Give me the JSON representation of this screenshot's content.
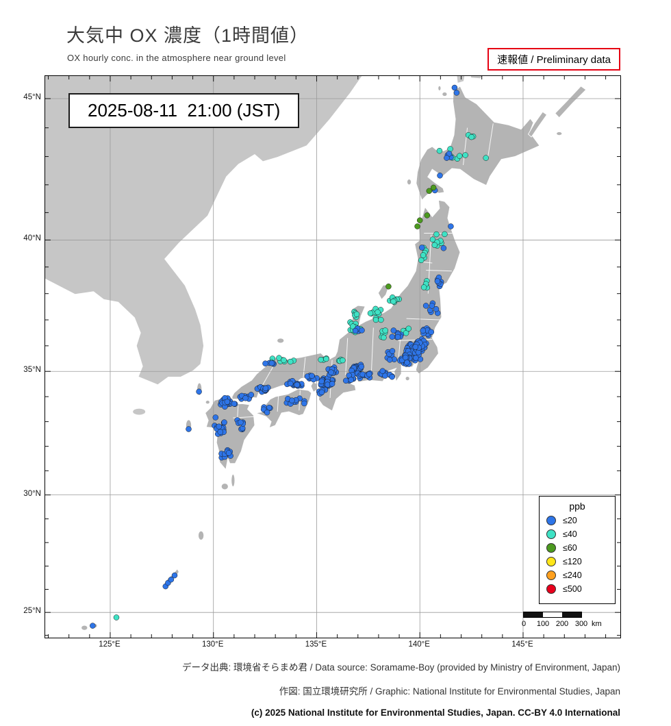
{
  "header": {
    "title": "大気中 OX 濃度（1時間値）",
    "subtitle": "OX hourly conc. in the atmosphere near ground level",
    "preliminary": "速報値 / Preliminary data"
  },
  "map": {
    "timestamp": "2025-08-11  21:00 (JST)",
    "scalebar": {
      "labels": [
        "0",
        "100",
        "200",
        "300",
        "km"
      ]
    }
  },
  "axes": {
    "lat": [
      {
        "label": "45°N",
        "value": 45
      },
      {
        "label": "40°N",
        "value": 40
      },
      {
        "label": "35°N",
        "value": 35
      },
      {
        "label": "30°N",
        "value": 30
      },
      {
        "label": "25°N",
        "value": 25
      }
    ],
    "lon": [
      {
        "label": "125°E",
        "value": 125
      },
      {
        "label": "130°E",
        "value": 130
      },
      {
        "label": "135°E",
        "value": 135
      },
      {
        "label": "140°E",
        "value": 140
      },
      {
        "label": "145°E",
        "value": 145
      }
    ]
  },
  "legend": {
    "title": "ppb",
    "items": [
      {
        "label": "≤20",
        "level": 20,
        "color": "#2e75e8"
      },
      {
        "label": "≤40",
        "level": 40,
        "color": "#3fe2c5"
      },
      {
        "label": "≤60",
        "level": 60,
        "color": "#4c9a1f"
      },
      {
        "label": "≤120",
        "level": 120,
        "color": "#ffe619"
      },
      {
        "label": "≤240",
        "level": 240,
        "color": "#ffa01e"
      },
      {
        "label": "≤500",
        "level": 500,
        "color": "#e8001c"
      }
    ]
  },
  "stations": {
    "clusters": [
      {
        "lon": 139.65,
        "lat": 35.75,
        "sx": 0.45,
        "sy": 0.35,
        "n": 70,
        "level": 20
      },
      {
        "lon": 140.0,
        "lat": 36.0,
        "sx": 0.35,
        "sy": 0.3,
        "n": 35,
        "level": 20
      },
      {
        "lon": 139.3,
        "lat": 35.45,
        "sx": 0.3,
        "sy": 0.2,
        "n": 20,
        "level": 20
      },
      {
        "lon": 138.35,
        "lat": 34.9,
        "sx": 0.45,
        "sy": 0.15,
        "n": 12,
        "level": 20
      },
      {
        "lon": 136.95,
        "lat": 35.1,
        "sx": 0.3,
        "sy": 0.28,
        "n": 30,
        "level": 20
      },
      {
        "lon": 137.3,
        "lat": 34.85,
        "sx": 0.35,
        "sy": 0.15,
        "n": 12,
        "level": 20
      },
      {
        "lon": 135.5,
        "lat": 34.6,
        "sx": 0.35,
        "sy": 0.22,
        "n": 40,
        "level": 20
      },
      {
        "lon": 135.75,
        "lat": 35.0,
        "sx": 0.25,
        "sy": 0.2,
        "n": 14,
        "level": 20
      },
      {
        "lon": 134.7,
        "lat": 34.75,
        "sx": 0.35,
        "sy": 0.12,
        "n": 12,
        "level": 20
      },
      {
        "lon": 133.8,
        "lat": 34.5,
        "sx": 0.5,
        "sy": 0.15,
        "n": 20,
        "level": 20
      },
      {
        "lon": 132.5,
        "lat": 34.28,
        "sx": 0.4,
        "sy": 0.15,
        "n": 16,
        "level": 20
      },
      {
        "lon": 131.5,
        "lat": 34.0,
        "sx": 0.45,
        "sy": 0.12,
        "n": 10,
        "level": 20
      },
      {
        "lon": 130.65,
        "lat": 33.75,
        "sx": 0.4,
        "sy": 0.25,
        "n": 30,
        "level": 20
      },
      {
        "lon": 130.3,
        "lat": 32.8,
        "sx": 0.3,
        "sy": 0.4,
        "n": 18,
        "level": 20
      },
      {
        "lon": 130.6,
        "lat": 31.7,
        "sx": 0.25,
        "sy": 0.35,
        "n": 10,
        "level": 20
      },
      {
        "lon": 131.3,
        "lat": 32.9,
        "sx": 0.25,
        "sy": 0.4,
        "n": 8,
        "level": 20
      },
      {
        "lon": 133.9,
        "lat": 33.8,
        "sx": 0.55,
        "sy": 0.2,
        "n": 12,
        "level": 20
      },
      {
        "lon": 132.6,
        "lat": 33.5,
        "sx": 0.25,
        "sy": 0.2,
        "n": 6,
        "level": 20
      },
      {
        "lon": 135.3,
        "lat": 34.25,
        "sx": 0.2,
        "sy": 0.15,
        "n": 8,
        "level": 20
      },
      {
        "lon": 136.6,
        "lat": 34.75,
        "sx": 0.25,
        "sy": 0.2,
        "n": 10,
        "level": 20
      },
      {
        "lon": 140.9,
        "lat": 38.3,
        "sx": 0.2,
        "sy": 0.35,
        "n": 7,
        "level": 20
      },
      {
        "lon": 140.55,
        "lat": 37.4,
        "sx": 0.35,
        "sy": 0.3,
        "n": 7,
        "level": 20
      },
      {
        "lon": 140.3,
        "lat": 36.55,
        "sx": 0.3,
        "sy": 0.2,
        "n": 10,
        "level": 20
      },
      {
        "lon": 138.9,
        "lat": 36.5,
        "sx": 0.3,
        "sy": 0.25,
        "n": 8,
        "level": 20
      },
      {
        "lon": 138.6,
        "lat": 35.65,
        "sx": 0.25,
        "sy": 0.2,
        "n": 7,
        "level": 20
      },
      {
        "lon": 137.0,
        "lat": 36.6,
        "sx": 0.25,
        "sy": 0.15,
        "n": 6,
        "level": 20
      },
      {
        "lon": 132.8,
        "lat": 35.3,
        "sx": 0.4,
        "sy": 0.1,
        "n": 5,
        "level": 20
      },
      {
        "lon": 136.7,
        "lat": 36.7,
        "sx": 0.45,
        "sy": 0.3,
        "n": 14,
        "level": 40
      },
      {
        "lon": 137.9,
        "lat": 37.2,
        "sx": 0.45,
        "sy": 0.25,
        "n": 12,
        "level": 40
      },
      {
        "lon": 138.8,
        "lat": 37.75,
        "sx": 0.35,
        "sy": 0.25,
        "n": 10,
        "level": 40
      },
      {
        "lon": 136.9,
        "lat": 37.25,
        "sx": 0.2,
        "sy": 0.18,
        "n": 5,
        "level": 40
      },
      {
        "lon": 133.4,
        "lat": 35.45,
        "sx": 0.7,
        "sy": 0.1,
        "n": 9,
        "level": 40
      },
      {
        "lon": 135.4,
        "lat": 35.5,
        "sx": 0.3,
        "sy": 0.12,
        "n": 4,
        "level": 40
      },
      {
        "lon": 140.9,
        "lat": 40.0,
        "sx": 0.35,
        "sy": 0.45,
        "n": 8,
        "level": 40
      },
      {
        "lon": 140.2,
        "lat": 39.5,
        "sx": 0.25,
        "sy": 0.4,
        "n": 6,
        "level": 40
      },
      {
        "lon": 140.3,
        "lat": 38.35,
        "sx": 0.25,
        "sy": 0.3,
        "n": 5,
        "level": 40
      },
      {
        "lon": 138.2,
        "lat": 36.5,
        "sx": 0.3,
        "sy": 0.3,
        "n": 7,
        "level": 40
      },
      {
        "lon": 139.3,
        "lat": 36.6,
        "sx": 0.25,
        "sy": 0.12,
        "n": 5,
        "level": 40
      },
      {
        "lon": 141.7,
        "lat": 43.1,
        "sx": 0.45,
        "sy": 0.25,
        "n": 5,
        "level": 40
      },
      {
        "lon": 142.5,
        "lat": 43.65,
        "sx": 0.25,
        "sy": 0.15,
        "n": 3,
        "level": 40
      },
      {
        "lon": 136.2,
        "lat": 35.4,
        "sx": 0.2,
        "sy": 0.15,
        "n": 4,
        "level": 40
      }
    ],
    "points": [
      {
        "lon": 141.68,
        "lat": 45.37,
        "level": 20
      },
      {
        "lon": 141.78,
        "lat": 45.2,
        "level": 20
      },
      {
        "lon": 141.35,
        "lat": 43.05,
        "level": 20
      },
      {
        "lon": 141.5,
        "lat": 42.97,
        "level": 20
      },
      {
        "lon": 141.42,
        "lat": 43.1,
        "level": 20
      },
      {
        "lon": 141.3,
        "lat": 42.95,
        "level": 20
      },
      {
        "lon": 140.97,
        "lat": 42.33,
        "level": 20
      },
      {
        "lon": 140.73,
        "lat": 41.8,
        "level": 20
      },
      {
        "lon": 141.5,
        "lat": 40.5,
        "level": 20
      },
      {
        "lon": 140.1,
        "lat": 39.72,
        "level": 20
      },
      {
        "lon": 141.15,
        "lat": 39.7,
        "level": 20
      },
      {
        "lon": 129.3,
        "lat": 34.2,
        "level": 20
      },
      {
        "lon": 128.8,
        "lat": 32.7,
        "level": 20
      },
      {
        "lon": 127.68,
        "lat": 26.13,
        "level": 20
      },
      {
        "lon": 127.8,
        "lat": 26.28,
        "level": 20
      },
      {
        "lon": 127.95,
        "lat": 26.42,
        "level": 20
      },
      {
        "lon": 128.12,
        "lat": 26.6,
        "level": 20
      },
      {
        "lon": 124.15,
        "lat": 24.42,
        "level": 20
      },
      {
        "lon": 142.35,
        "lat": 43.75,
        "level": 40
      },
      {
        "lon": 142.5,
        "lat": 43.68,
        "level": 40
      },
      {
        "lon": 142.2,
        "lat": 43.05,
        "level": 40
      },
      {
        "lon": 143.2,
        "lat": 42.95,
        "level": 40
      },
      {
        "lon": 140.95,
        "lat": 43.2,
        "level": 40
      },
      {
        "lon": 125.3,
        "lat": 24.78,
        "level": 40
      },
      {
        "lon": 140.45,
        "lat": 41.78,
        "level": 60
      },
      {
        "lon": 140.66,
        "lat": 41.9,
        "level": 60
      },
      {
        "lon": 140.0,
        "lat": 40.72,
        "level": 60
      },
      {
        "lon": 139.88,
        "lat": 40.5,
        "level": 60
      },
      {
        "lon": 140.35,
        "lat": 40.9,
        "level": 60
      },
      {
        "lon": 138.48,
        "lat": 38.27,
        "level": 60
      }
    ]
  },
  "footer": {
    "line1": "データ出典: 環境省そらまめ君 / Data source: Soramame-Boy (provided by Ministry of Environment, Japan)",
    "line2": "作図: 国立環境研究所 / Graphic: National Institute for Environmental Studies, Japan",
    "line3": "(c) 2025 National Institute for Environmental Studies, Japan. CC-BY 4.0 International"
  }
}
